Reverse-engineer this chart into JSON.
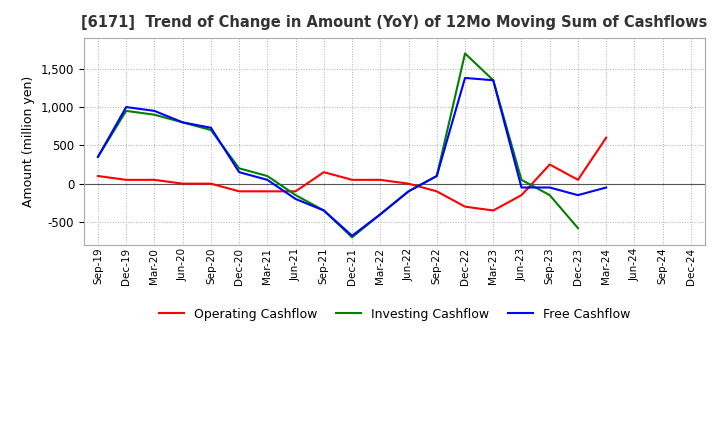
{
  "title": "[6171]  Trend of Change in Amount (YoY) of 12Mo Moving Sum of Cashflows",
  "ylabel": "Amount (million yen)",
  "x_labels": [
    "Sep-19",
    "Dec-19",
    "Mar-20",
    "Jun-20",
    "Sep-20",
    "Dec-20",
    "Mar-21",
    "Jun-21",
    "Sep-21",
    "Dec-21",
    "Mar-22",
    "Jun-22",
    "Sep-22",
    "Dec-22",
    "Mar-23",
    "Jun-23",
    "Sep-23",
    "Dec-23",
    "Mar-24",
    "Jun-24",
    "Sep-24",
    "Dec-24"
  ],
  "operating": [
    100,
    50,
    50,
    0,
    0,
    -100,
    -100,
    -100,
    150,
    50,
    50,
    0,
    -100,
    -300,
    -350,
    -150,
    250,
    50,
    600,
    null,
    null,
    null
  ],
  "investing": [
    350,
    950,
    900,
    800,
    700,
    200,
    100,
    -150,
    -350,
    -700,
    -400,
    -100,
    100,
    1700,
    1350,
    50,
    -150,
    -580,
    null,
    null,
    null,
    null
  ],
  "free": [
    350,
    1000,
    950,
    800,
    730,
    150,
    50,
    -200,
    -350,
    -680,
    -400,
    -100,
    100,
    1380,
    1350,
    -50,
    -50,
    -150,
    -50,
    null,
    null,
    null
  ],
  "operating_color": "#ff0000",
  "investing_color": "#008000",
  "free_color": "#0000ff",
  "ylim": [
    -800,
    1900
  ],
  "yticks": [
    -500,
    0,
    500,
    1000,
    1500
  ],
  "background_color": "#ffffff",
  "grid_color": "#b0b0b0"
}
